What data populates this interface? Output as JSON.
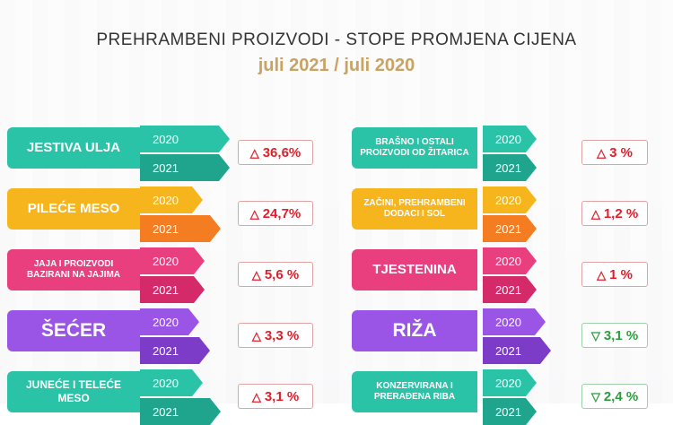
{
  "header": {
    "title": "PREHRAMBENI PROIZVODI - STOPE PROMJENA CIJENA",
    "subtitle": "juli 2021 / juli 2020"
  },
  "colors": {
    "teal": "#2bc3a8",
    "teal_dark": "#1fa58e",
    "yellow": "#f6b51c",
    "orange": "#f47c21",
    "pink": "#ea3f7f",
    "magenta": "#d42a6a",
    "purple": "#9b55e6",
    "purple_dark": "#7d3cc8",
    "gold": "#c8a363",
    "up": "#e11d2a",
    "down": "#2a9d3c"
  },
  "chart_data": {
    "type": "bar",
    "years": [
      "2020",
      "2021"
    ],
    "categories": [
      {
        "name": "JESTIVA ULJA",
        "change": "36,6%",
        "direction": "up"
      },
      {
        "name": "PILEĆE MESO",
        "change": "24,7%",
        "direction": "up"
      },
      {
        "name": "JAJA I PROIZVODI BAZIRANI NA JAJIMA",
        "change": "5,6 %",
        "direction": "up"
      },
      {
        "name": "ŠEĆER",
        "change": "3,3 %",
        "direction": "up"
      },
      {
        "name": "JUNEĆE I TELEĆE MESO",
        "change": "3,1 %",
        "direction": "up"
      },
      {
        "name": "BRAŠNO I OSTALI PROIZVODI OD ŽITARICA",
        "change": "3 %",
        "direction": "up"
      },
      {
        "name": "ZAČINI, PREHRAMBENI DODACI I SOL",
        "change": "1,2 %",
        "direction": "up"
      },
      {
        "name": "TJESTENINA",
        "change": "1 %",
        "direction": "up"
      },
      {
        "name": "RIŽA",
        "change": "3,1 %",
        "direction": "down"
      },
      {
        "name": "KONZERVIRANA I PRERAĐENA RIBA",
        "change": "2,4 %",
        "direction": "down"
      }
    ]
  }
}
